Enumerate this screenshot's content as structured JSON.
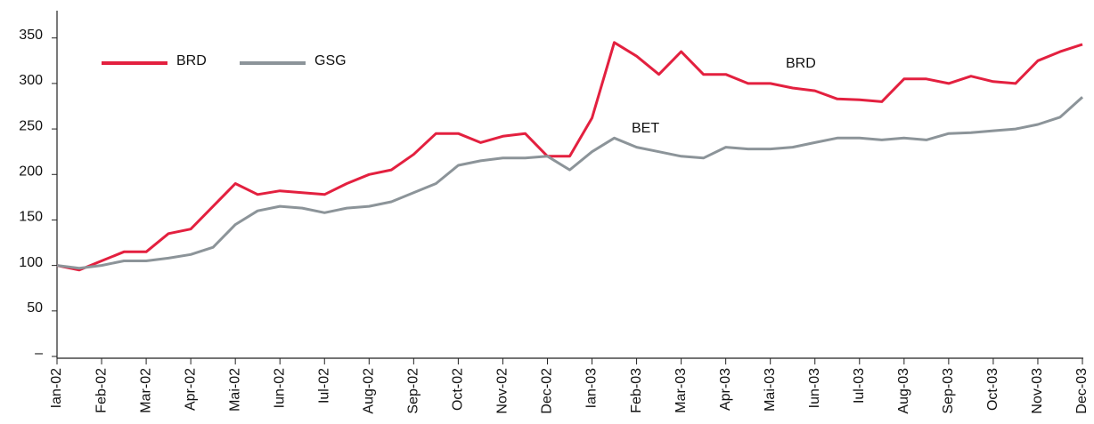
{
  "chart_data": {
    "type": "line",
    "categories": [
      "Ian-02",
      null,
      "Feb-02",
      null,
      "Mar-02",
      null,
      "Apr-02",
      null,
      "Mai-02",
      null,
      "Iun-02",
      null,
      "Iul-02",
      null,
      "Aug-02",
      null,
      "Sep-02",
      null,
      "Oct-02",
      null,
      "Nov-02",
      null,
      "Dec-02",
      null,
      "Ian-03",
      null,
      "Feb-03",
      null,
      "Mar-03",
      null,
      "Apr-03",
      null,
      "Mai-03",
      null,
      "Iun-03",
      null,
      "Iul-03",
      null,
      "Aug-03",
      null,
      "Sep-03",
      null,
      "Oct-03",
      null,
      "Nov-03",
      null,
      "Dec-03"
    ],
    "series": [
      {
        "name": "BRD",
        "color": "#e3203f",
        "values": [
          100,
          95,
          105,
          115,
          115,
          135,
          140,
          165,
          190,
          178,
          182,
          180,
          178,
          190,
          200,
          205,
          222,
          245,
          245,
          235,
          242,
          245,
          220,
          220,
          262,
          345,
          330,
          310,
          335,
          310,
          310,
          300,
          300,
          295,
          292,
          283,
          282,
          280,
          305,
          305,
          300,
          308,
          302,
          300,
          325,
          335,
          343
        ]
      },
      {
        "name": "GSG",
        "color": "#8c9499",
        "values": [
          100,
          97,
          100,
          105,
          105,
          108,
          112,
          120,
          145,
          160,
          165,
          163,
          158,
          163,
          165,
          170,
          180,
          190,
          210,
          215,
          218,
          218,
          220,
          205,
          225,
          240,
          230,
          225,
          220,
          218,
          230,
          228,
          228,
          230,
          235,
          240,
          240,
          238,
          240,
          238,
          245,
          246,
          248,
          250,
          255,
          263,
          285
        ]
      }
    ],
    "annotations": [
      "BRD",
      "BET"
    ],
    "ylim": [
      0,
      380
    ],
    "yticks": [
      {
        "value": 0,
        "label": "–"
      },
      50,
      100,
      150,
      200,
      250,
      300,
      350
    ],
    "grid": false,
    "legend": "upper left"
  }
}
